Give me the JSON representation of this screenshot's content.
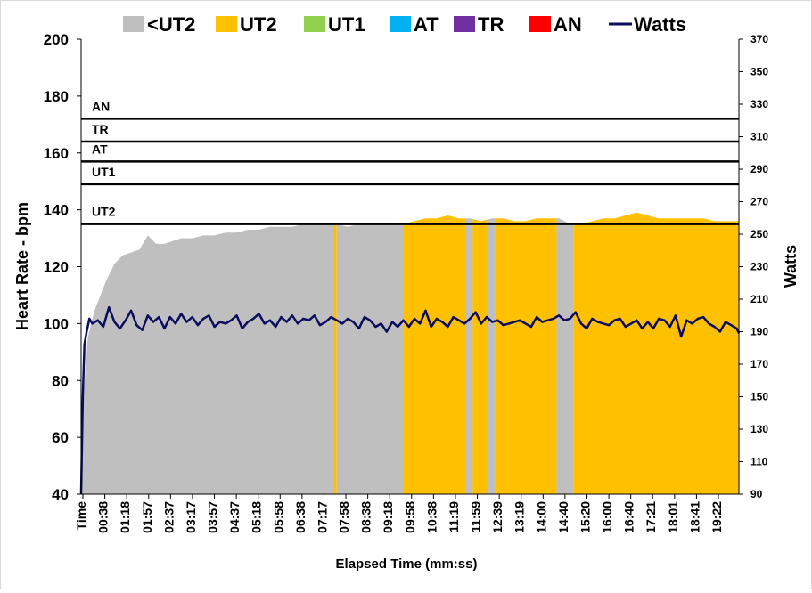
{
  "chart_data": {
    "type": "area",
    "title": "",
    "xlabel": "Elapsed Time (mm:ss)",
    "ylabel": "Heart Rate - bpm",
    "y2label": "Watts",
    "ylim": [
      40,
      200
    ],
    "y2lim": [
      90,
      370
    ],
    "yticks": [
      40,
      60,
      80,
      100,
      120,
      140,
      160,
      180,
      200
    ],
    "y2ticks": [
      90,
      110,
      130,
      150,
      170,
      190,
      210,
      230,
      250,
      270,
      290,
      310,
      330,
      350,
      370
    ],
    "x_tick_labels": [
      "Time",
      "00:38",
      "01:18",
      "01:57",
      "02:37",
      "03:17",
      "03:57",
      "04:37",
      "05:18",
      "05:58",
      "06:38",
      "07:17",
      "07:58",
      "08:38",
      "09:18",
      "09:58",
      "10:38",
      "11:19",
      "11:59",
      "12:39",
      "13:19",
      "14:00",
      "14:40",
      "15:20",
      "16:00",
      "16:40",
      "17:21",
      "18:01",
      "18:41",
      "19:22"
    ],
    "x_range_seconds": [
      0,
      1184
    ],
    "legend": [
      {
        "name": "<UT2",
        "color": "#bfbfbf",
        "kind": "area"
      },
      {
        "name": "UT2",
        "color": "#ffc000",
        "kind": "area"
      },
      {
        "name": "UT1",
        "color": "#92d050",
        "kind": "area"
      },
      {
        "name": "AT",
        "color": "#00b0f0",
        "kind": "area"
      },
      {
        "name": "TR",
        "color": "#7030a0",
        "kind": "area"
      },
      {
        "name": "AN",
        "color": "#ff0000",
        "kind": "area"
      },
      {
        "name": "Watts",
        "color": "#0c0c5e",
        "kind": "line"
      }
    ],
    "legend_position": "top",
    "zone_lines": [
      {
        "label": "AN",
        "hr": 172
      },
      {
        "label": "TR",
        "hr": 164
      },
      {
        "label": "AT",
        "hr": 157
      },
      {
        "label": "UT1",
        "hr": 149
      },
      {
        "label": "UT2",
        "hr": 135
      }
    ],
    "heart_rate": {
      "x": [
        0,
        2,
        5,
        8,
        12,
        18,
        25,
        35,
        45,
        60,
        75,
        90,
        105,
        120,
        135,
        150,
        165,
        180,
        200,
        220,
        240,
        260,
        280,
        300,
        320,
        340,
        360,
        380,
        400,
        420,
        440,
        460,
        480,
        500,
        520,
        540,
        560,
        580,
        600,
        620,
        640,
        660,
        680,
        700,
        720,
        740,
        760,
        780,
        800,
        820,
        840,
        860,
        880,
        900,
        920,
        940,
        960,
        980,
        1000,
        1020,
        1040,
        1060,
        1080,
        1100,
        1120,
        1140,
        1160,
        1184
      ],
      "y": [
        40,
        60,
        75,
        85,
        95,
        100,
        105,
        110,
        115,
        121,
        124,
        125,
        126,
        131,
        128,
        128,
        129,
        130,
        130,
        131,
        131,
        132,
        132,
        133,
        133,
        134,
        134,
        134,
        135,
        135,
        135,
        135,
        134,
        135,
        135,
        135,
        135,
        135,
        136,
        137,
        137,
        138,
        137,
        137,
        136,
        137,
        137,
        136,
        136,
        137,
        137,
        137,
        135,
        135,
        136,
        137,
        137,
        138,
        139,
        138,
        137,
        137,
        137,
        137,
        137,
        136,
        136,
        136
      ],
      "zone_segments": [
        {
          "zone": "<UT2",
          "start": 0,
          "end": 454
        },
        {
          "zone": "UT2",
          "start": 454,
          "end": 460
        },
        {
          "zone": "<UT2",
          "start": 460,
          "end": 580
        },
        {
          "zone": "UT2",
          "start": 580,
          "end": 693
        },
        {
          "zone": "<UT2",
          "start": 693,
          "end": 705
        },
        {
          "zone": "UT2",
          "start": 705,
          "end": 732
        },
        {
          "zone": "<UT2",
          "start": 732,
          "end": 745
        },
        {
          "zone": "UT2",
          "start": 745,
          "end": 856
        },
        {
          "zone": "<UT2",
          "start": 856,
          "end": 886
        },
        {
          "zone": "UT2",
          "start": 886,
          "end": 1184
        }
      ]
    },
    "watts": {
      "x": [
        0,
        3,
        6,
        10,
        15,
        20,
        30,
        40,
        50,
        60,
        70,
        80,
        90,
        100,
        110,
        120,
        130,
        140,
        150,
        160,
        170,
        180,
        190,
        200,
        210,
        220,
        230,
        240,
        250,
        260,
        270,
        280,
        290,
        300,
        310,
        320,
        330,
        340,
        350,
        360,
        370,
        380,
        390,
        400,
        410,
        420,
        430,
        440,
        450,
        460,
        470,
        480,
        490,
        500,
        510,
        520,
        530,
        540,
        550,
        560,
        570,
        580,
        590,
        600,
        610,
        620,
        630,
        640,
        650,
        660,
        670,
        680,
        690,
        700,
        710,
        720,
        730,
        740,
        750,
        760,
        770,
        780,
        790,
        800,
        810,
        820,
        830,
        840,
        850,
        860,
        870,
        880,
        890,
        900,
        910,
        920,
        930,
        940,
        950,
        960,
        970,
        980,
        990,
        1000,
        1010,
        1020,
        1030,
        1040,
        1050,
        1060,
        1070,
        1080,
        1090,
        1100,
        1110,
        1120,
        1130,
        1140,
        1150,
        1160,
        1170,
        1180,
        1184
      ],
      "y": [
        90,
        150,
        182,
        190,
        198,
        195,
        197,
        193,
        205,
        196,
        192,
        197,
        203,
        194,
        191,
        200,
        196,
        199,
        192,
        199,
        195,
        201,
        196,
        199,
        194,
        198,
        200,
        193,
        196,
        195,
        197,
        200,
        192,
        196,
        198,
        201,
        195,
        197,
        193,
        199,
        196,
        200,
        195,
        198,
        197,
        200,
        194,
        196,
        199,
        197,
        195,
        198,
        196,
        192,
        199,
        197,
        193,
        195,
        190,
        196,
        193,
        197,
        193,
        198,
        195,
        203,
        193,
        198,
        196,
        193,
        199,
        197,
        195,
        198,
        202,
        195,
        199,
        196,
        197,
        194,
        195,
        196,
        197,
        195,
        193,
        199,
        196,
        197,
        198,
        200,
        197,
        198,
        202,
        195,
        192,
        198,
        196,
        195,
        194,
        197,
        198,
        193,
        195,
        197,
        192,
        196,
        192,
        198,
        197,
        193,
        200,
        187,
        197,
        195,
        198,
        199,
        195,
        193,
        190,
        196,
        194,
        192,
        189
      ]
    }
  }
}
